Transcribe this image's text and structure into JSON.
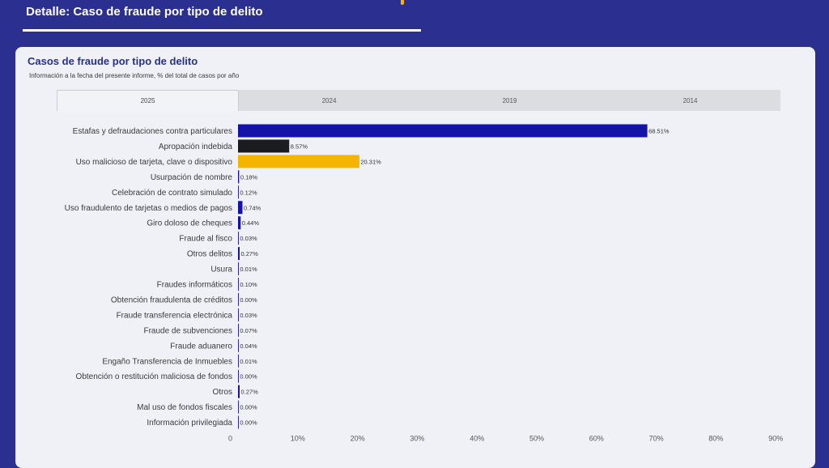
{
  "header": {
    "title": "Detalle: Caso de fraude por tipo de delito"
  },
  "card": {
    "title": "Casos de fraude por tipo de delito",
    "subtitle": "Información a la fecha del presente informe, % del total de casos por año"
  },
  "tabs": [
    {
      "label": "2025",
      "active": true
    },
    {
      "label": "2024",
      "active": false
    },
    {
      "label": "2019",
      "active": false
    },
    {
      "label": "2014",
      "active": false
    }
  ],
  "colors": {
    "background": "#2b2f8f",
    "card": "#eff1f6",
    "default_bar": "#1313a8",
    "highlight_dark": "#1b1c20",
    "highlight_yellow": "#f5b400"
  },
  "chart_data": {
    "type": "bar",
    "orientation": "horizontal",
    "title": "Casos de fraude por tipo de delito",
    "xlabel": "",
    "ylabel": "",
    "xlim": [
      0,
      90
    ],
    "x_ticks": [
      0,
      10,
      20,
      30,
      40,
      50,
      60,
      70,
      80,
      90
    ],
    "x_tick_labels": [
      "0",
      "10%",
      "20%",
      "30%",
      "40%",
      "50%",
      "60%",
      "70%",
      "80%",
      "90%"
    ],
    "grid": false,
    "categories": [
      "Estafas y defraudaciones contra particulares",
      "Apropación indebida",
      "Uso malicioso de tarjeta, clave o dispositivo",
      "Usurpación de nombre",
      "Celebración de contrato simulado",
      "Uso fraudulento de tarjetas o medios de pagos",
      "Giro doloso de cheques",
      "Fraude al fisco",
      "Otros delitos",
      "Usura",
      "Fraudes informáticos",
      "Obtención fraudulenta de créditos",
      "Fraude transferencia electrónica",
      "Fraude de subvenciones",
      "Fraude aduanero",
      "Engaño Transferencia de Inmuebles",
      "Obtención o restitución maliciosa de fondos",
      "Otros",
      "Mal uso de fondos fiscales",
      "Información privilegiada"
    ],
    "values": [
      68.51,
      8.57,
      20.31,
      0.18,
      0.12,
      0.74,
      0.44,
      0.03,
      0.27,
      0.01,
      0.1,
      0.0,
      0.03,
      0.07,
      0.04,
      0.01,
      0.0,
      0.27,
      0.0,
      0.0
    ],
    "value_labels": [
      "68.51%",
      "8.57%",
      "20.31%",
      "0.18%",
      "0.12%",
      "0.74%",
      "0.44%",
      "0.03%",
      "0.27%",
      "0.01%",
      "0.10%",
      "0.00%",
      "0.03%",
      "0.07%",
      "0.04%",
      "0.01%",
      "0.00%",
      "0.27%",
      "0.00%",
      "0.00%"
    ],
    "bar_colors": [
      "#1313a8",
      "#1b1c20",
      "#f5b400",
      "#1313a8",
      "#1313a8",
      "#1313a8",
      "#1313a8",
      "#1313a8",
      "#1313a8",
      "#1313a8",
      "#1313a8",
      "#1313a8",
      "#1313a8",
      "#1313a8",
      "#1313a8",
      "#1313a8",
      "#1313a8",
      "#1313a8",
      "#1313a8",
      "#1313a8"
    ]
  }
}
